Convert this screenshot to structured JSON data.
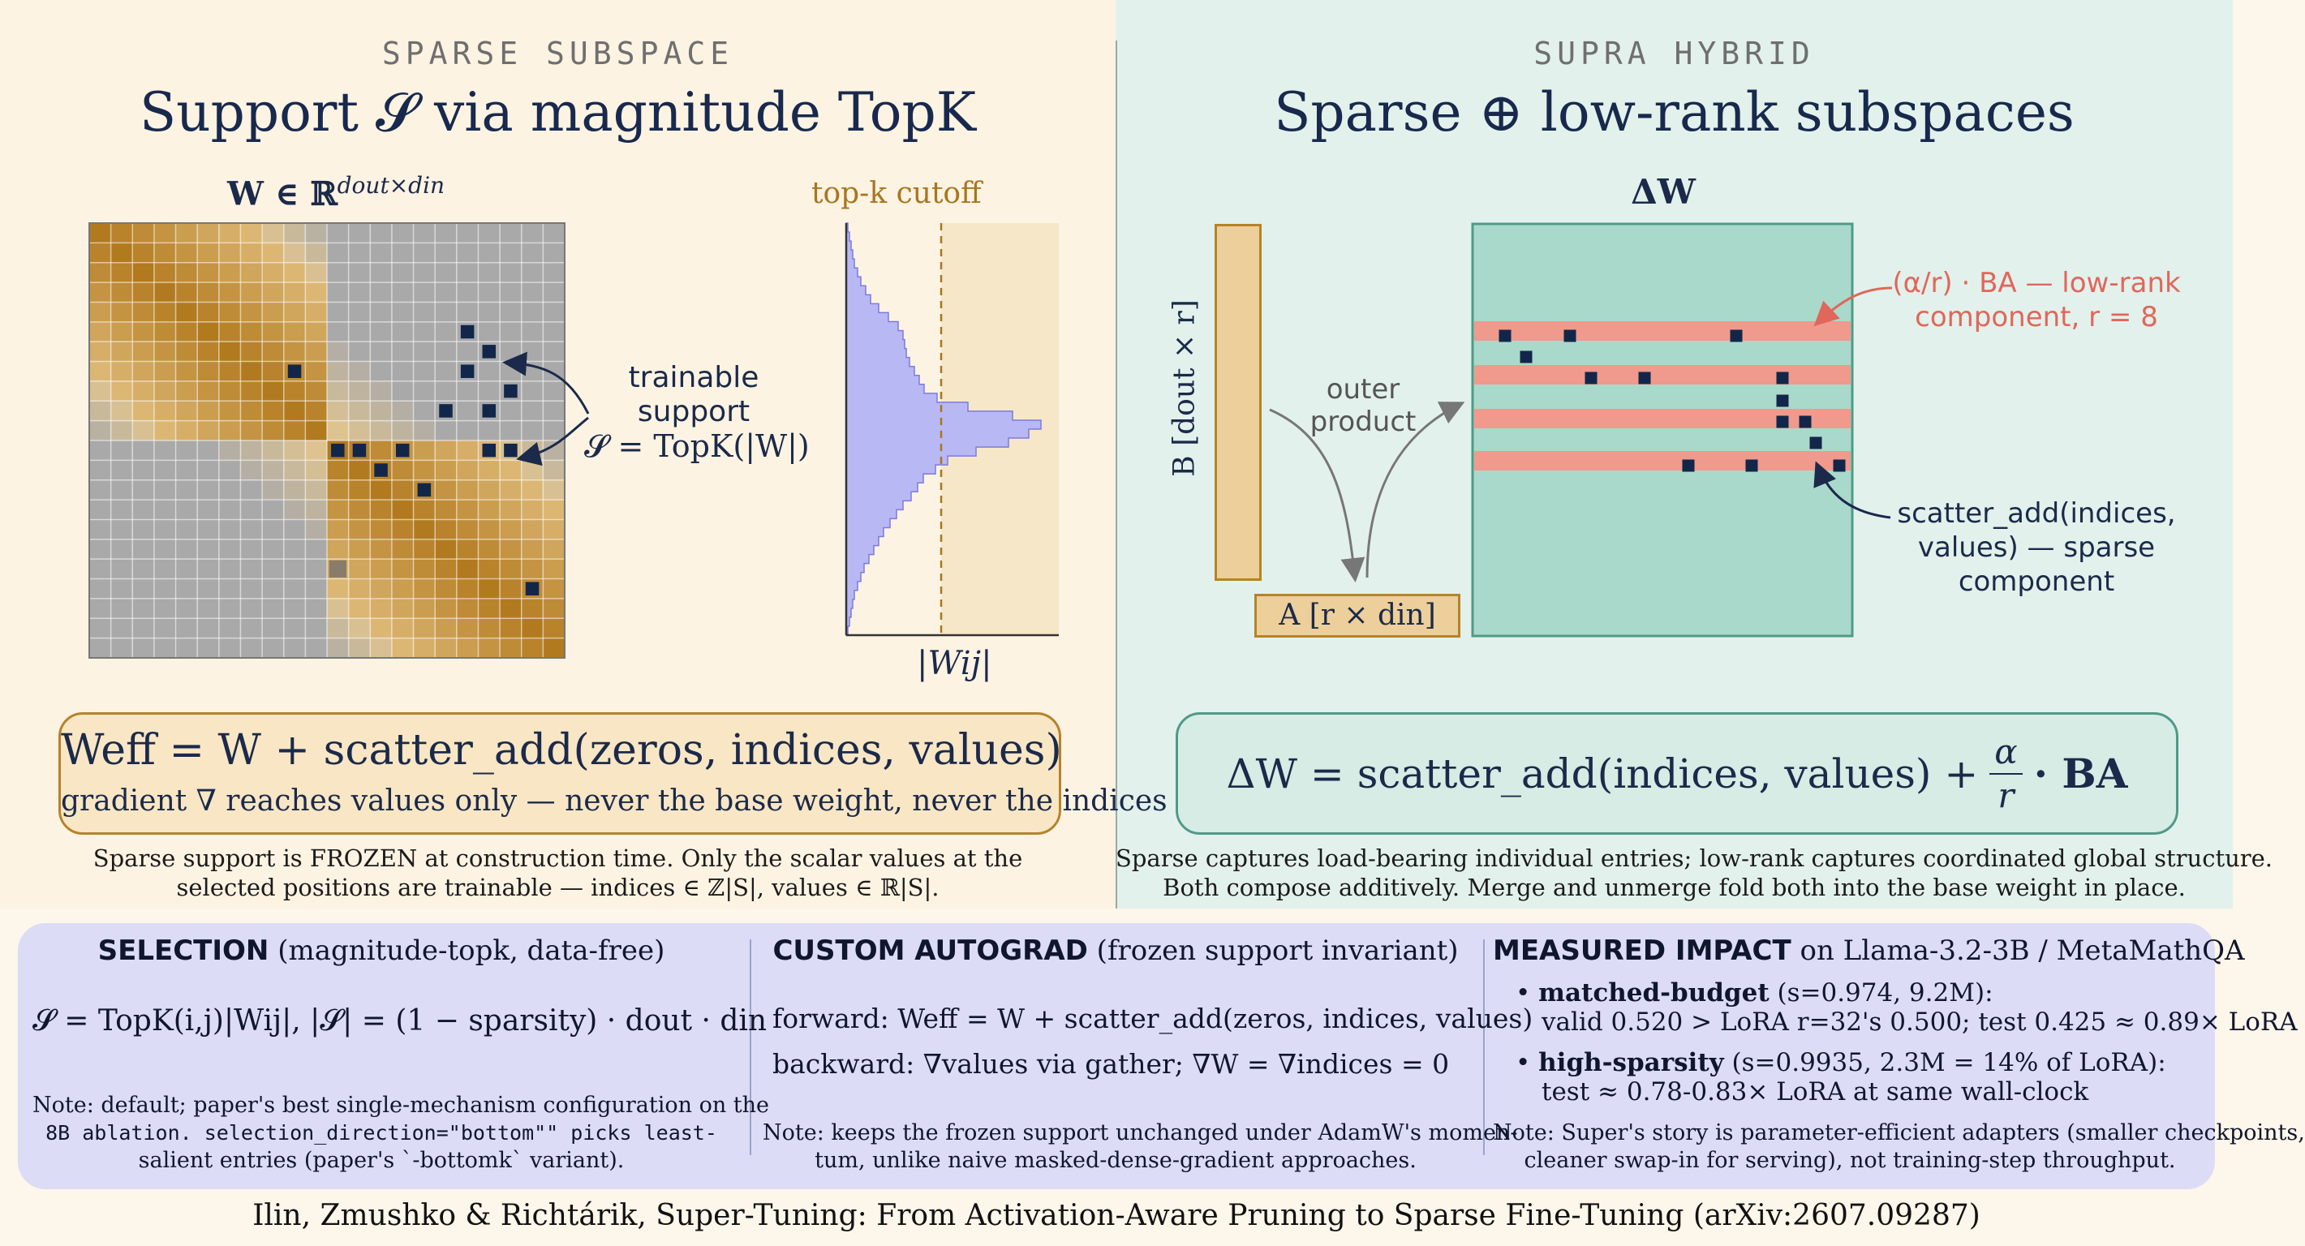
{
  "left": {
    "eyebrow": "SPARSE SUBSPACE",
    "title": "Support 𝓢 via magnitude TopK",
    "matrix_label": "W ∈ ℝ",
    "matrix_label_sup": "dout×din",
    "hist_cutoff_label": "top-k cutoff",
    "hist_xlabel": "|Wij|",
    "callout_line1": "trainable",
    "callout_line2": "support",
    "callout_line3": "𝓢 = TopK(|W|)",
    "equation": "Weff = W + scatter_add(zeros, indices, values)",
    "equation_sub": "gradient ∇ reaches values only — never the base weight, never the indices",
    "caption_line1": "Sparse support is FROZEN at construction time. Only the scalar values at the",
    "caption_line2": "selected positions are trainable — indices ∈ ℤ|S|, values ∈ ℝ|S|."
  },
  "right": {
    "eyebrow": "SUPRA HYBRID",
    "title": "Sparse ⊕ low-rank subspaces",
    "delta_label": "ΔW",
    "b_label": "B [dout × r]",
    "a_label": "A [r × din]",
    "outer_line1": "outer",
    "outer_line2": "product",
    "lowrank_line1": "(α/r) · BA — low-rank",
    "lowrank_line2": "component, r = 8",
    "sparse_line1": "scatter_add(indices,",
    "sparse_line2": "values) — sparse",
    "sparse_line3": "component",
    "equation_left": "ΔW = scatter_add(indices, values) +",
    "equation_num": "α",
    "equation_den": "r",
    "equation_right": "· BA",
    "caption_line1": "Sparse captures load-bearing individual entries; low-rank captures coordinated global structure.",
    "caption_line2": "Both compose additively. Merge and unmerge fold both into the base weight in place."
  },
  "selection": {
    "title_bold": "SELECTION",
    "title_rest": " (magnitude-topk, data-free)",
    "formula": "𝓢 = TopK(i,j)|Wij|, |𝓢| = (1 − sparsity) · dout · din",
    "note_line1": "Note: default; paper's best single-mechanism configuration on the",
    "note_line2": "8B ablation. selection_direction=\"bottom\"\" picks least-",
    "note_line3": "salient entries (paper's `-bottomk` variant)."
  },
  "autograd": {
    "title_bold": "CUSTOM AUTOGRAD",
    "title_rest": " (frozen support invariant)",
    "forward": "forward: Weff = W + scatter_add(zeros, indices, values)",
    "backward": "backward: ∇values via gather; ∇W = ∇indices = 0",
    "note_line1": "Note: keeps the frozen support unchanged under AdamW's momen-",
    "note_line2": "tum, unlike naive masked-dense-gradient approaches."
  },
  "impact": {
    "title_bold": "MEASURED IMPACT",
    "title_rest": " on Llama-3.2-3B / MetaMathQA",
    "b1_bold": "matched-budget",
    "b1_rest": " (s=0.974, 9.2M):",
    "b1_line2": "valid 0.520 > LoRA r=32's 0.500; test 0.425 ≈ 0.89× LoRA",
    "b2_bold": "high-sparsity",
    "b2_rest": " (s=0.9935, 2.3M = 14% of LoRA):",
    "b2_line2": "test ≈ 0.78-0.83× LoRA at same wall-clock",
    "note_line1": "Note: Super's story is parameter-efficient adapters (smaller checkpoints,",
    "note_line2": "cleaner swap-in for serving), not training-step throughput."
  },
  "footer": "Ilin, Zmushko & Richtárik, Super-Tuning: From Activation-Aware Pruning to Sparse Fine-Tuning (arXiv:2607.09287)",
  "colors": {
    "matrix_dark": "#b27a1f",
    "matrix_grey": "#a9a9a9",
    "support_square": "#12264a",
    "histogram_fill": "#b8b8f5",
    "cutoff_line": "#a8761e",
    "lowrank_band": "#ef9a8c",
    "delta_bg": "#a9d9cb"
  }
}
